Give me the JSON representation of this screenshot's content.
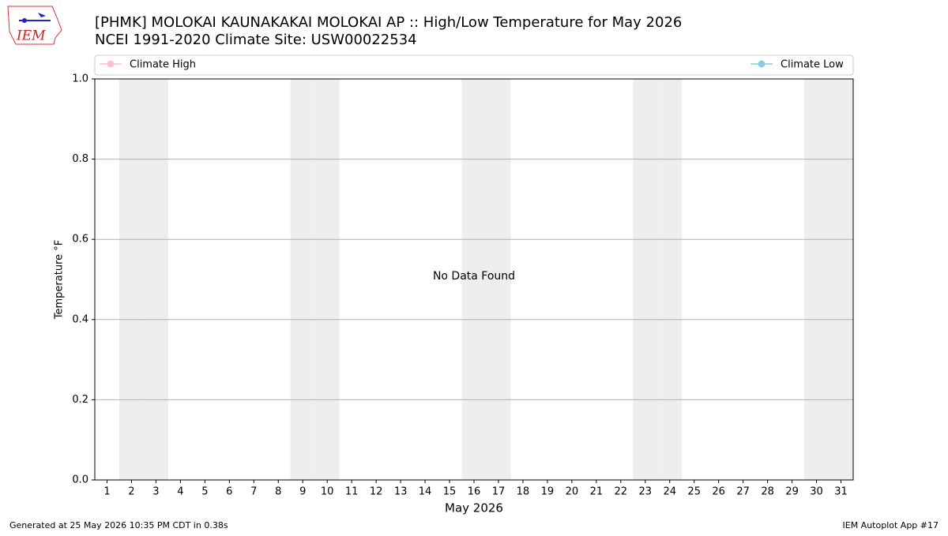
{
  "logo_text": "IEM",
  "footer_left": "Generated at 25 May 2026 10:35 PM CDT in 0.38s",
  "footer_right": "IEM Autoplot App #17",
  "chart_data": {
    "type": "line",
    "title": "[PHMK] MOLOKAI KAUNAKAKAI MOLOKAI AP :: High/Low Temperature for May 2026",
    "subtitle": "NCEI 1991-2020 Climate Site: USW00022534",
    "x_label": "May 2026",
    "y_label": "Temperature °F",
    "annotation": "No Data Found",
    "x": [
      1,
      2,
      3,
      4,
      5,
      6,
      7,
      8,
      9,
      10,
      11,
      12,
      13,
      14,
      15,
      16,
      17,
      18,
      19,
      20,
      21,
      22,
      23,
      24,
      25,
      26,
      27,
      28,
      29,
      30,
      31
    ],
    "series": [
      {
        "name": "Climate High",
        "color": "#ffc0cb",
        "values": [
          null,
          null,
          null,
          null,
          null,
          null,
          null,
          null,
          null,
          null,
          null,
          null,
          null,
          null,
          null,
          null,
          null,
          null,
          null,
          null,
          null,
          null,
          null,
          null,
          null,
          null,
          null,
          null,
          null,
          null,
          null
        ]
      },
      {
        "name": "Climate Low",
        "color": "#87ceeb",
        "values": [
          null,
          null,
          null,
          null,
          null,
          null,
          null,
          null,
          null,
          null,
          null,
          null,
          null,
          null,
          null,
          null,
          null,
          null,
          null,
          null,
          null,
          null,
          null,
          null,
          null,
          null,
          null,
          null,
          null,
          null,
          null
        ]
      }
    ],
    "shaded_days": [
      2,
      3,
      9,
      10,
      16,
      17,
      23,
      24,
      30,
      31
    ],
    "shade_color": "#eeeeee",
    "xlim": [
      0.5,
      31.5
    ],
    "xticks": [
      1,
      2,
      3,
      4,
      5,
      6,
      7,
      8,
      9,
      10,
      11,
      12,
      13,
      14,
      15,
      16,
      17,
      18,
      19,
      20,
      21,
      22,
      23,
      24,
      25,
      26,
      27,
      28,
      29,
      30,
      31
    ],
    "ylim": [
      0,
      1
    ],
    "yticks": [
      {
        "value": 0,
        "label": "0.0"
      },
      0.2,
      0.4,
      0.6,
      0.8,
      {
        "value": 1,
        "label": "1.0"
      }
    ],
    "grid": "y"
  }
}
